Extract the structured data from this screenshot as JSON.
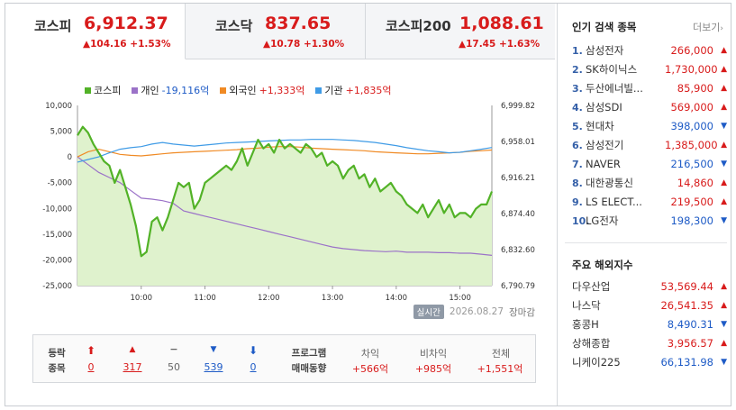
{
  "tabs": [
    {
      "name": "코스피",
      "value": "6,912.37",
      "change": "104.16",
      "pct": "+1.53%",
      "active": true
    },
    {
      "name": "코스닥",
      "value": "837.65",
      "change": "10.78",
      "pct": "+1.30%",
      "active": false
    },
    {
      "name": "코스피200",
      "value": "1,088.61",
      "change": "17.45",
      "pct": "+1.63%",
      "active": false
    }
  ],
  "legend": [
    {
      "name": "코스피",
      "value": "",
      "color": "#52b227"
    },
    {
      "name": "개인",
      "value": "-19,116억",
      "color": "#9b72c8"
    },
    {
      "name": "외국인",
      "value": "+1,333억",
      "color": "#f08a24"
    },
    {
      "name": "기관",
      "value": "+1,835억",
      "color": "#3f9be6"
    }
  ],
  "chart_data": {
    "type": "line",
    "left_axis": {
      "ticks": [
        10000,
        5000,
        0,
        -5000,
        -10000,
        -15000,
        -20000,
        -25000
      ],
      "labels": [
        "10,000",
        "5,000",
        "0",
        "-5,000",
        "-10,000",
        "-15,000",
        "-20,000",
        "-25,000"
      ],
      "range": [
        -25000,
        10000
      ]
    },
    "right_axis": {
      "ticks": [
        "6,999.82",
        "6,958.01",
        "6,916.21",
        "6,874.40",
        "6,832.60",
        "6,790.79"
      ],
      "range": [
        6790.79,
        6999.82
      ]
    },
    "x_ticks": [
      "10:00",
      "11:00",
      "12:00",
      "13:00",
      "14:00",
      "15:00"
    ],
    "x_range": [
      "09:00",
      "15:30"
    ],
    "series": [
      {
        "name": "코스피",
        "axis": "right",
        "color": "#52b227",
        "x": [
          "09:00",
          "09:05",
          "09:10",
          "09:15",
          "09:20",
          "09:25",
          "09:30",
          "09:35",
          "09:40",
          "09:45",
          "09:50",
          "09:55",
          "10:00",
          "10:05",
          "10:10",
          "10:15",
          "10:20",
          "10:25",
          "10:30",
          "10:35",
          "10:40",
          "10:45",
          "10:50",
          "10:55",
          "11:00",
          "11:05",
          "11:10",
          "11:15",
          "11:20",
          "11:25",
          "11:30",
          "11:35",
          "11:40",
          "11:45",
          "11:50",
          "11:55",
          "12:00",
          "12:05",
          "12:10",
          "12:15",
          "12:20",
          "12:25",
          "12:30",
          "12:35",
          "12:40",
          "12:45",
          "12:50",
          "12:55",
          "13:00",
          "13:05",
          "13:10",
          "13:15",
          "13:20",
          "13:25",
          "13:30",
          "13:35",
          "13:40",
          "13:45",
          "13:50",
          "13:55",
          "14:00",
          "14:05",
          "14:10",
          "14:15",
          "14:20",
          "14:25",
          "14:30",
          "14:35",
          "14:40",
          "14:45",
          "14:50",
          "14:55",
          "15:00",
          "15:05",
          "15:10",
          "15:15",
          "15:20",
          "15:25",
          "15:30"
        ],
        "values": [
          6965,
          6975,
          6968,
          6955,
          6945,
          6935,
          6930,
          6910,
          6925,
          6905,
          6885,
          6860,
          6825,
          6830,
          6865,
          6870,
          6855,
          6870,
          6890,
          6910,
          6905,
          6910,
          6880,
          6890,
          6910,
          6915,
          6920,
          6925,
          6930,
          6925,
          6935,
          6950,
          6930,
          6945,
          6960,
          6950,
          6955,
          6945,
          6960,
          6950,
          6955,
          6950,
          6945,
          6955,
          6950,
          6940,
          6945,
          6930,
          6935,
          6930,
          6915,
          6925,
          6930,
          6915,
          6920,
          6905,
          6915,
          6900,
          6905,
          6910,
          6900,
          6895,
          6885,
          6880,
          6875,
          6885,
          6870,
          6880,
          6890,
          6875,
          6885,
          6870,
          6875,
          6875,
          6870,
          6880,
          6885,
          6885,
          6900
        ]
      },
      {
        "name": "개인",
        "axis": "left",
        "color": "#9b72c8",
        "x": [
          "09:00",
          "09:10",
          "09:20",
          "09:30",
          "09:40",
          "09:50",
          "10:00",
          "10:10",
          "10:20",
          "10:30",
          "10:40",
          "10:50",
          "11:00",
          "11:10",
          "11:20",
          "11:30",
          "11:40",
          "11:50",
          "12:00",
          "12:10",
          "12:20",
          "12:30",
          "12:40",
          "12:50",
          "13:00",
          "13:10",
          "13:20",
          "13:30",
          "13:40",
          "13:50",
          "14:00",
          "14:10",
          "14:20",
          "14:30",
          "14:40",
          "14:50",
          "15:00",
          "15:10",
          "15:20",
          "15:30"
        ],
        "values": [
          0,
          -1500,
          -3000,
          -4000,
          -5000,
          -6500,
          -8000,
          -8200,
          -8500,
          -9000,
          -10500,
          -11000,
          -11500,
          -12000,
          -12500,
          -13000,
          -13500,
          -14000,
          -14500,
          -15000,
          -15500,
          -16000,
          -16500,
          -17000,
          -17500,
          -17800,
          -18000,
          -18200,
          -18300,
          -18400,
          -18300,
          -18500,
          -18500,
          -18500,
          -18600,
          -18600,
          -18700,
          -18700,
          -18900,
          -19116
        ]
      },
      {
        "name": "외국인",
        "axis": "left",
        "color": "#f08a24",
        "x": [
          "09:00",
          "09:10",
          "09:20",
          "09:30",
          "09:40",
          "09:50",
          "10:00",
          "10:10",
          "10:20",
          "10:30",
          "10:40",
          "10:50",
          "11:00",
          "11:10",
          "11:20",
          "11:30",
          "11:40",
          "11:50",
          "12:00",
          "12:10",
          "12:20",
          "12:30",
          "12:40",
          "12:50",
          "13:00",
          "13:10",
          "13:20",
          "13:30",
          "13:40",
          "13:50",
          "14:00",
          "14:10",
          "14:20",
          "14:30",
          "14:40",
          "14:50",
          "15:00",
          "15:10",
          "15:20",
          "15:30"
        ],
        "values": [
          0,
          1000,
          1500,
          1000,
          500,
          300,
          200,
          400,
          600,
          800,
          900,
          1000,
          1100,
          1200,
          1300,
          1400,
          1600,
          1700,
          1900,
          2000,
          2000,
          1900,
          1700,
          1600,
          1500,
          1400,
          1300,
          1200,
          1000,
          900,
          800,
          700,
          600,
          600,
          700,
          800,
          900,
          1100,
          1200,
          1333
        ]
      },
      {
        "name": "기관",
        "axis": "left",
        "color": "#3f9be6",
        "x": [
          "09:00",
          "09:10",
          "09:20",
          "09:30",
          "09:40",
          "09:50",
          "10:00",
          "10:10",
          "10:20",
          "10:30",
          "10:40",
          "10:50",
          "11:00",
          "11:10",
          "11:20",
          "11:30",
          "11:40",
          "11:50",
          "12:00",
          "12:10",
          "12:20",
          "12:30",
          "12:40",
          "12:50",
          "13:00",
          "13:10",
          "13:20",
          "13:30",
          "13:40",
          "13:50",
          "14:00",
          "14:10",
          "14:20",
          "14:30",
          "14:40",
          "14:50",
          "15:00",
          "15:10",
          "15:20",
          "15:30"
        ],
        "values": [
          -1000,
          -500,
          0,
          800,
          1500,
          1800,
          2000,
          2500,
          2800,
          2500,
          2300,
          2100,
          2300,
          2500,
          2700,
          2800,
          2900,
          3000,
          3100,
          3200,
          3300,
          3300,
          3400,
          3400,
          3400,
          3300,
          3200,
          3000,
          2800,
          2500,
          2200,
          1800,
          1500,
          1200,
          1000,
          800,
          900,
          1200,
          1500,
          1835
        ]
      }
    ]
  },
  "time": {
    "badge": "실시간",
    "date": "2026.08.27",
    "status": "장마감"
  },
  "stats": {
    "label1": "등락",
    "label2": "종목",
    "upper_limit": "0",
    "rise": "317",
    "flat": "50",
    "fall": "539",
    "lower_limit": "0",
    "program_label1": "프로그램",
    "program_label2": "매매동향",
    "arb_label": "차익",
    "arb_value": "+566억",
    "nonarb_label": "비차익",
    "nonarb_value": "+985억",
    "total_label": "전체",
    "total_value": "+1,551억"
  },
  "popular": {
    "title": "인기 검색 종목",
    "more": "더보기",
    "items": [
      {
        "rank": "1.",
        "name": "삼성전자",
        "price": "266,000",
        "dir": "up"
      },
      {
        "rank": "2.",
        "name": "SK하이닉스",
        "price": "1,730,000",
        "dir": "up"
      },
      {
        "rank": "3.",
        "name": "두산에너빌...",
        "price": "85,900",
        "dir": "up"
      },
      {
        "rank": "4.",
        "name": "삼성SDI",
        "price": "569,000",
        "dir": "up"
      },
      {
        "rank": "5.",
        "name": "현대차",
        "price": "398,000",
        "dir": "down"
      },
      {
        "rank": "6.",
        "name": "삼성전기",
        "price": "1,385,000",
        "dir": "up"
      },
      {
        "rank": "7.",
        "name": "NAVER",
        "price": "216,500",
        "dir": "down"
      },
      {
        "rank": "8.",
        "name": "대한광통신",
        "price": "14,860",
        "dir": "up"
      },
      {
        "rank": "9.",
        "name": "LS ELECT...",
        "price": "219,500",
        "dir": "up"
      },
      {
        "rank": "10.",
        "name": "LG전자",
        "price": "198,300",
        "dir": "down"
      }
    ]
  },
  "world": {
    "title": "주요 해외지수",
    "items": [
      {
        "name": "다우산업",
        "price": "53,569.44",
        "dir": "up"
      },
      {
        "name": "나스닥",
        "price": "26,541.35",
        "dir": "up"
      },
      {
        "name": "홍콩H",
        "price": "8,490.31",
        "dir": "down"
      },
      {
        "name": "상해종합",
        "price": "3,956.57",
        "dir": "up"
      },
      {
        "name": "니케이225",
        "price": "66,131.98",
        "dir": "down"
      }
    ]
  },
  "colors": {
    "up": "#d81b1b",
    "down": "#1e5bc6",
    "area_fill": "#dff2cd"
  }
}
